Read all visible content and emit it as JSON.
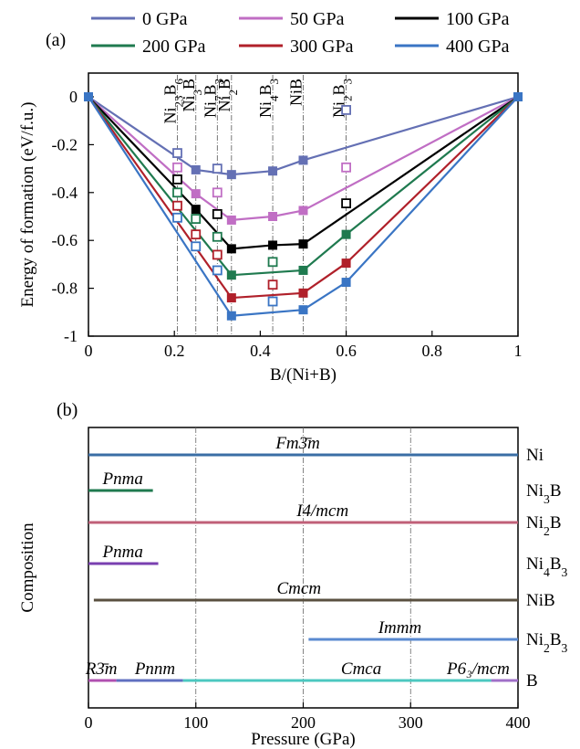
{
  "figure": {
    "panel_a_label": "(a)",
    "panel_b_label": "(b)"
  },
  "chart_data": [
    {
      "type": "line",
      "panel": "(a)",
      "xlabel": "B/(Ni+B)",
      "ylabel": "Energy of formation (eV/f.u.)",
      "xlim": [
        0,
        1
      ],
      "ylim": [
        -1,
        0.05
      ],
      "x_ticks": [
        "0",
        "0.2",
        "0.4",
        "0.6",
        "0.8",
        "1"
      ],
      "y_ticks": [
        "0",
        "-0.2",
        "-0.4",
        "-0.6",
        "-0.8",
        "-1"
      ],
      "legend_placement": "top",
      "compounds": [
        {
          "x": 0.207,
          "label": "Ni23B6"
        },
        {
          "x": 0.25,
          "label": "Ni3B"
        },
        {
          "x": 0.3,
          "label": "Ni7B3"
        },
        {
          "x": 0.333,
          "label": "Ni2B"
        },
        {
          "x": 0.429,
          "label": "Ni4B3"
        },
        {
          "x": 0.5,
          "label": "NiB"
        },
        {
          "x": 0.6,
          "label": "Ni2B3"
        }
      ],
      "series": [
        {
          "name": "0 GPa",
          "color": "#6470b4",
          "hull": [
            [
              0,
              0
            ],
            [
              0.25,
              -0.305
            ],
            [
              0.333,
              -0.325
            ],
            [
              0.429,
              -0.31
            ],
            [
              0.5,
              -0.265
            ],
            [
              1,
              0
            ]
          ],
          "stable": [
            [
              0,
              0
            ],
            [
              0.25,
              -0.305
            ],
            [
              0.333,
              -0.325
            ],
            [
              0.429,
              -0.31
            ],
            [
              0.5,
              -0.265
            ],
            [
              1,
              0
            ]
          ],
          "metastable": [
            [
              0.207,
              -0.235
            ],
            [
              0.3,
              -0.3
            ],
            [
              0.6,
              -0.055
            ]
          ]
        },
        {
          "name": "50 GPa",
          "color": "#c06ec4",
          "hull": [
            [
              0,
              0
            ],
            [
              0.25,
              -0.405
            ],
            [
              0.333,
              -0.515
            ],
            [
              0.429,
              -0.5
            ],
            [
              0.5,
              -0.475
            ],
            [
              1,
              0
            ]
          ],
          "stable": [
            [
              0,
              0
            ],
            [
              0.25,
              -0.405
            ],
            [
              0.333,
              -0.515
            ],
            [
              0.429,
              -0.5
            ],
            [
              0.5,
              -0.475
            ],
            [
              1,
              0
            ]
          ],
          "metastable": [
            [
              0.207,
              -0.295
            ],
            [
              0.3,
              -0.4
            ],
            [
              0.6,
              -0.295
            ]
          ]
        },
        {
          "name": "100 GPa",
          "color": "#000000",
          "hull": [
            [
              0,
              0
            ],
            [
              0.25,
              -0.47
            ],
            [
              0.333,
              -0.635
            ],
            [
              0.429,
              -0.62
            ],
            [
              0.5,
              -0.615
            ],
            [
              1,
              0
            ]
          ],
          "stable": [
            [
              0,
              0
            ],
            [
              0.25,
              -0.47
            ],
            [
              0.333,
              -0.635
            ],
            [
              0.429,
              -0.62
            ],
            [
              0.5,
              -0.615
            ],
            [
              1,
              0
            ]
          ],
          "metastable": [
            [
              0.207,
              -0.345
            ],
            [
              0.3,
              -0.49
            ],
            [
              0.6,
              -0.445
            ]
          ]
        },
        {
          "name": "200 GPa",
          "color": "#1f7a4f",
          "hull": [
            [
              0,
              0
            ],
            [
              0.333,
              -0.745
            ],
            [
              0.5,
              -0.725
            ],
            [
              0.6,
              -0.575
            ],
            [
              1,
              0
            ]
          ],
          "stable": [
            [
              0,
              0
            ],
            [
              0.333,
              -0.745
            ],
            [
              0.5,
              -0.725
            ],
            [
              0.6,
              -0.575
            ],
            [
              1,
              0
            ]
          ],
          "metastable": [
            [
              0.207,
              -0.4
            ],
            [
              0.25,
              -0.51
            ],
            [
              0.3,
              -0.585
            ],
            [
              0.429,
              -0.69
            ]
          ]
        },
        {
          "name": "300 GPa",
          "color": "#b0202a",
          "hull": [
            [
              0,
              0
            ],
            [
              0.333,
              -0.84
            ],
            [
              0.5,
              -0.82
            ],
            [
              0.6,
              -0.695
            ],
            [
              1,
              0
            ]
          ],
          "stable": [
            [
              0,
              0
            ],
            [
              0.333,
              -0.84
            ],
            [
              0.5,
              -0.82
            ],
            [
              0.6,
              -0.695
            ],
            [
              1,
              0
            ]
          ],
          "metastable": [
            [
              0.207,
              -0.455
            ],
            [
              0.25,
              -0.575
            ],
            [
              0.3,
              -0.66
            ],
            [
              0.429,
              -0.785
            ]
          ]
        },
        {
          "name": "400 GPa",
          "color": "#3a75c4",
          "hull": [
            [
              0,
              0
            ],
            [
              0.333,
              -0.915
            ],
            [
              0.5,
              -0.89
            ],
            [
              0.6,
              -0.775
            ],
            [
              1,
              0
            ]
          ],
          "stable": [
            [
              0,
              0
            ],
            [
              0.333,
              -0.915
            ],
            [
              0.5,
              -0.89
            ],
            [
              0.6,
              -0.775
            ],
            [
              1,
              0
            ]
          ],
          "metastable": [
            [
              0.207,
              -0.505
            ],
            [
              0.25,
              -0.625
            ],
            [
              0.3,
              -0.725
            ],
            [
              0.429,
              -0.855
            ]
          ]
        }
      ]
    },
    {
      "type": "bar",
      "panel": "(b)",
      "xlabel": "Pressure (GPa)",
      "ylabel": "Composition",
      "xlim": [
        0,
        400
      ],
      "x_ticks": [
        "0",
        "100",
        "200",
        "300",
        "400"
      ],
      "vertical_grid": [
        100,
        200,
        300
      ],
      "rows": [
        {
          "composition": "Ni",
          "label": "Ni"
        },
        {
          "composition": "Ni3B",
          "label": "Ni3B"
        },
        {
          "composition": "Ni2B",
          "label": "Ni2B"
        },
        {
          "composition": "Ni4B3",
          "label": "Ni4B3"
        },
        {
          "composition": "NiB",
          "label": "NiB"
        },
        {
          "composition": "Ni2B3",
          "label": "Ni2B3"
        },
        {
          "composition": "B",
          "label": "B"
        }
      ],
      "phases": [
        {
          "row": 0,
          "from": 0,
          "to": 400,
          "name": "Fm3̄m",
          "color": "#3a6ea5",
          "label_at": 195
        },
        {
          "row": 1,
          "from": 0,
          "to": 60,
          "name": "Pnma",
          "color": "#1f7a4f",
          "label_at": 32
        },
        {
          "row": 2,
          "from": 0,
          "to": 400,
          "name": "I4/mcm",
          "color": "#c06078",
          "label_at": 218
        },
        {
          "row": 3,
          "from": 0,
          "to": 65,
          "name": "Pnma",
          "color": "#7a3fb0",
          "label_at": 32
        },
        {
          "row": 4,
          "from": 5,
          "to": 400,
          "name": "Cmcm",
          "color": "#5a5040",
          "label_at": 196
        },
        {
          "row": 5,
          "from": 205,
          "to": 400,
          "name": "Immm",
          "color": "#5a8ad0",
          "label_at": 290
        },
        {
          "row": 6,
          "from": 0,
          "to": 26,
          "name": "R3̄m",
          "color": "#b050b0",
          "label_at": 12
        },
        {
          "row": 6,
          "from": 26,
          "to": 88,
          "name": "Pnnm",
          "color": "#6070c0",
          "label_at": 62
        },
        {
          "row": 6,
          "from": 88,
          "to": 375,
          "name": "Cmca",
          "color": "#4cc8c0",
          "label_at": 254
        },
        {
          "row": 6,
          "from": 375,
          "to": 400,
          "name": "P6₃/mcm",
          "color": "#a070c8",
          "label_at": 363
        }
      ]
    }
  ]
}
